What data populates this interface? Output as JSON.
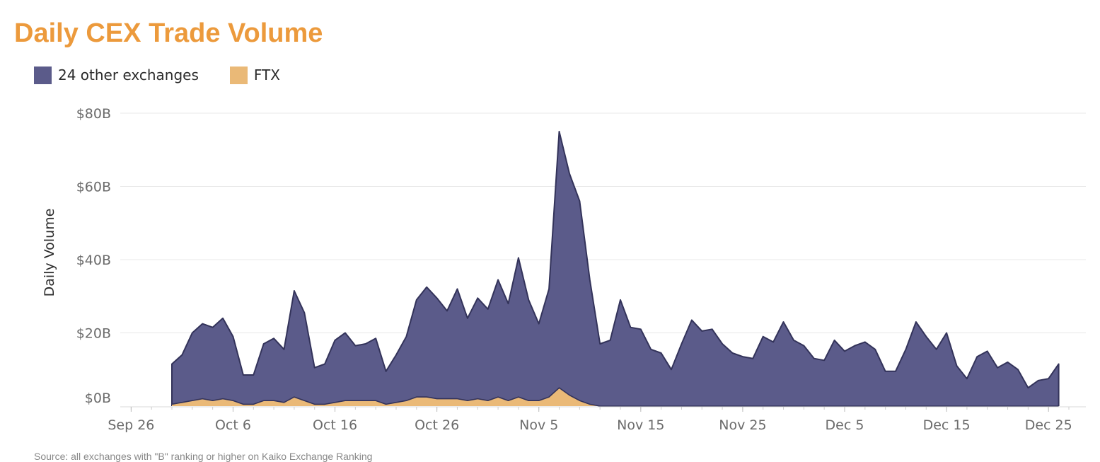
{
  "title": "Daily CEX Trade Volume",
  "colors": {
    "title": "#ec9a3c",
    "other_exchanges": "#5b5b8a",
    "other_exchanges_line": "#33335a",
    "ftx": "#eab977",
    "grid": "#e8e8e8",
    "axis_text": "#6b6b6b"
  },
  "legend": [
    {
      "label": "24 other exchanges",
      "color": "#5b5b8a"
    },
    {
      "label": "FTX",
      "color": "#eab977"
    }
  ],
  "source": "Source: all exchanges with \"B\" ranking or higher on Kaiko Exchange Ranking",
  "chart_data": {
    "type": "area",
    "stacked": true,
    "title": "Daily CEX Trade Volume",
    "ylabel": "Daily Volume",
    "xlabel": "",
    "x_start": "Sep 30",
    "x_end": "Dec 27",
    "xlim": [
      "Sep 22",
      "Dec 28"
    ],
    "ylim": [
      0,
      80
    ],
    "y_ticks": [
      0,
      20,
      40,
      60,
      80
    ],
    "y_tick_labels": [
      "$0B",
      "$20B",
      "$40B",
      "$60B",
      "$80B"
    ],
    "x_ticks": [
      "Sep 26",
      "Oct 6",
      "Oct 16",
      "Oct 26",
      "Nov 5",
      "Nov 15",
      "Nov 25",
      "Dec 5",
      "Dec 15",
      "Dec 25"
    ],
    "grid": true,
    "legend_position": "top-left",
    "series": [
      {
        "name": "24 other exchanges",
        "values": [
          11.5,
          14,
          20,
          22.5,
          21.5,
          24,
          19,
          8.5,
          8.5,
          17,
          18.5,
          15.5,
          31.5,
          25.5,
          10.5,
          11.5,
          18,
          20,
          16.5,
          17,
          18.5,
          9.5,
          14,
          19,
          29,
          32.5,
          29.5,
          26,
          32,
          24,
          29.5,
          26.5,
          34.5,
          28,
          40.5,
          29,
          22.5,
          32,
          75,
          63.5,
          56,
          34.5,
          17,
          18,
          29,
          21.5,
          21,
          15.5,
          14.5,
          10,
          17,
          23.5,
          20.5,
          21,
          17,
          14.5,
          13.5,
          13,
          19,
          17.5,
          23,
          18,
          16.5,
          13,
          12.5,
          18,
          15,
          16.5,
          17.5,
          15.5,
          9.5,
          9.5,
          15.5,
          23,
          19,
          15.5,
          20,
          11,
          7.5,
          13.5,
          15,
          10.5,
          12,
          10,
          5,
          7,
          7.5,
          11.5
        ]
      },
      {
        "name": "FTX",
        "values": [
          0.5,
          1,
          1.5,
          2,
          1.5,
          2,
          1.5,
          0.5,
          0.5,
          1.5,
          1.5,
          1,
          2.5,
          1.5,
          0.5,
          0.5,
          1,
          1.5,
          1.5,
          1.5,
          1.5,
          0.5,
          1,
          1.5,
          2.5,
          2.5,
          2,
          2,
          2,
          1.5,
          2,
          1.5,
          2.5,
          1.5,
          2.5,
          1.5,
          1.5,
          2.5,
          5,
          3,
          1.5,
          0.5,
          0,
          0,
          0,
          0,
          0,
          0,
          0,
          0,
          0,
          0,
          0,
          0,
          0,
          0,
          0,
          0,
          0,
          0,
          0,
          0,
          0,
          0,
          0,
          0,
          0,
          0,
          0,
          0,
          0,
          0,
          0,
          0,
          0,
          0,
          0,
          0,
          0,
          0,
          0,
          0,
          0,
          0,
          0,
          0,
          0,
          0
        ]
      }
    ]
  }
}
